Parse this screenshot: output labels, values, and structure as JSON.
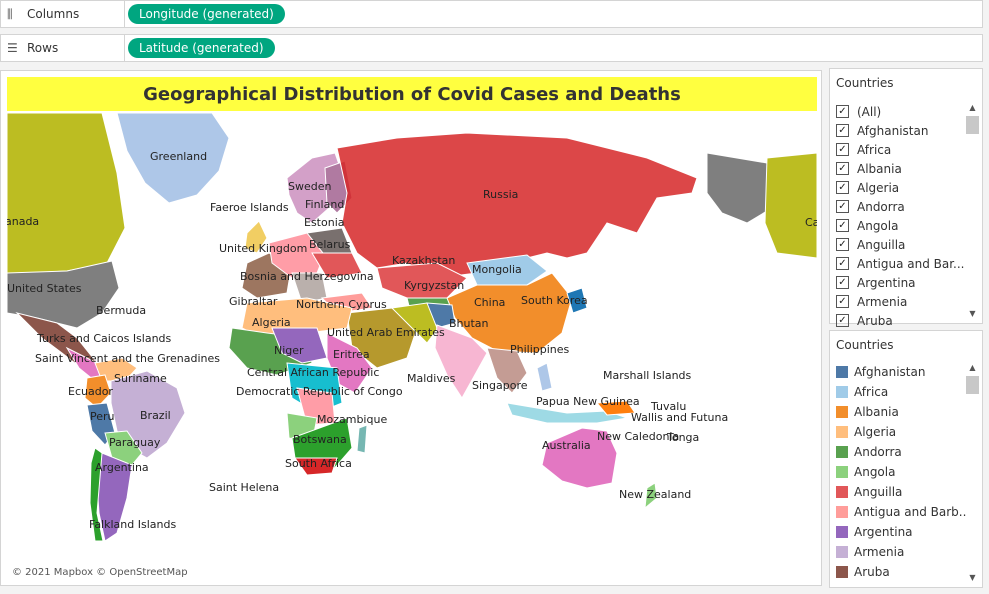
{
  "shelves": {
    "columns": {
      "label": "Columns",
      "pill": "Longitude (generated)"
    },
    "rows": {
      "label": "Rows",
      "pill": "Latitude (generated)"
    }
  },
  "viz": {
    "title": "Geographical Distribution of Covid Cases and Deaths",
    "attribution": "© 2021 Mapbox © OpenStreetMap"
  },
  "map_labels": [
    "Greenland",
    "Sweden",
    "Faeroe Islands",
    "Finland",
    "Estonia",
    "anada",
    "United Kingdom",
    "Belarus",
    "Russia",
    "Kazakhstan",
    "Mongolia",
    "Bosnia and Herzegovina",
    "Kyrgyzstan",
    "United States",
    "Gibraltar",
    "Northern Cyprus",
    "China",
    "South Korea",
    "Bermuda",
    "Algeria",
    "United Arab Emirates",
    "Bhutan",
    "Turks and Caicos Islands",
    "Niger",
    "Eritrea",
    "Philippines",
    "Saint Vincent and the Grenadines",
    "Suriname",
    "Central African Republic",
    "Maldives",
    "Marshall Islands",
    "Ecuador",
    "Democratic Republic of Congo",
    "Singapore",
    "Papua New Guinea",
    "Tuvalu",
    "Brazil",
    "Peru",
    "Mozambique",
    "Wallis and Futuna",
    "Paraguay",
    "Botswana",
    "New Caledonia",
    "Tonga",
    "Australia",
    "Argentina",
    "South Africa",
    "Saint Helena",
    "New Zealand",
    "Falkland Islands",
    "Ca"
  ],
  "filter_panel": {
    "title": "Countries",
    "items": [
      "(All)",
      "Afghanistan",
      "Africa",
      "Albania",
      "Algeria",
      "Andorra",
      "Angola",
      "Anguilla",
      "Antigua and Bar...",
      "Argentina",
      "Armenia",
      "Aruba"
    ]
  },
  "legend_panel": {
    "title": "Countries",
    "items": [
      {
        "label": "Afghanistan",
        "color": "#4e79a7"
      },
      {
        "label": "Africa",
        "color": "#a0cbe8"
      },
      {
        "label": "Albania",
        "color": "#f28e2b"
      },
      {
        "label": "Algeria",
        "color": "#ffbe7d"
      },
      {
        "label": "Andorra",
        "color": "#59a14f"
      },
      {
        "label": "Angola",
        "color": "#8cd17d"
      },
      {
        "label": "Anguilla",
        "color": "#e15759"
      },
      {
        "label": "Antigua and Barb...",
        "color": "#ff9d9a"
      },
      {
        "label": "Argentina",
        "color": "#9467bd"
      },
      {
        "label": "Armenia",
        "color": "#c5b0d5"
      },
      {
        "label": "Aruba",
        "color": "#8c564b"
      }
    ]
  }
}
